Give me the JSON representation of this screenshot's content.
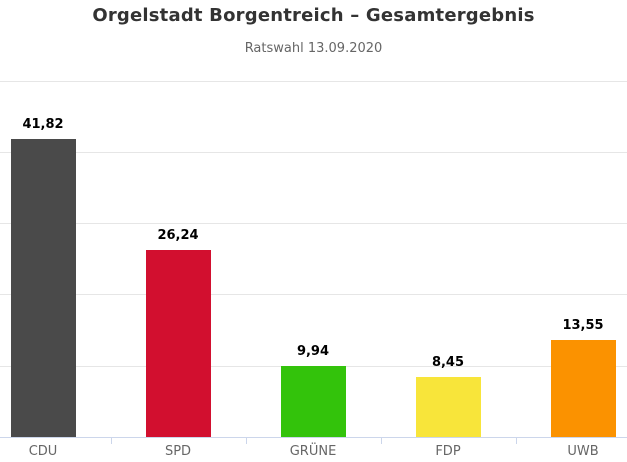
{
  "chart_data": {
    "type": "bar",
    "title": "Orgelstadt Borgentreich – Gesamtergebnis",
    "subtitle": "Ratswahl 13.09.2020",
    "categories": [
      "CDU",
      "SPD",
      "GRÜNE",
      "FDP",
      "UWB"
    ],
    "values": [
      41.82,
      26.24,
      9.94,
      8.45,
      13.55
    ],
    "value_labels": [
      "41,82",
      "26,24",
      "9,94",
      "8,45",
      "13,55"
    ],
    "bar_colors": [
      "#4a4a4a",
      "#d20f2f",
      "#33c30b",
      "#f8e53a",
      "#fb9200"
    ],
    "ylim": [
      0,
      50
    ],
    "gridline_interval": 10,
    "grid": "on",
    "legend": "none",
    "xlabel": "",
    "ylabel": ""
  },
  "theme": {
    "background": "#ffffff",
    "title_color": "#333333",
    "subtitle_color": "#666666",
    "gridline_color": "#e6e6e6",
    "axis_line_color": "#ccd6eb",
    "tick_color": "#ccd6eb",
    "category_label_color": "#666666",
    "value_label_color": "#000000"
  }
}
